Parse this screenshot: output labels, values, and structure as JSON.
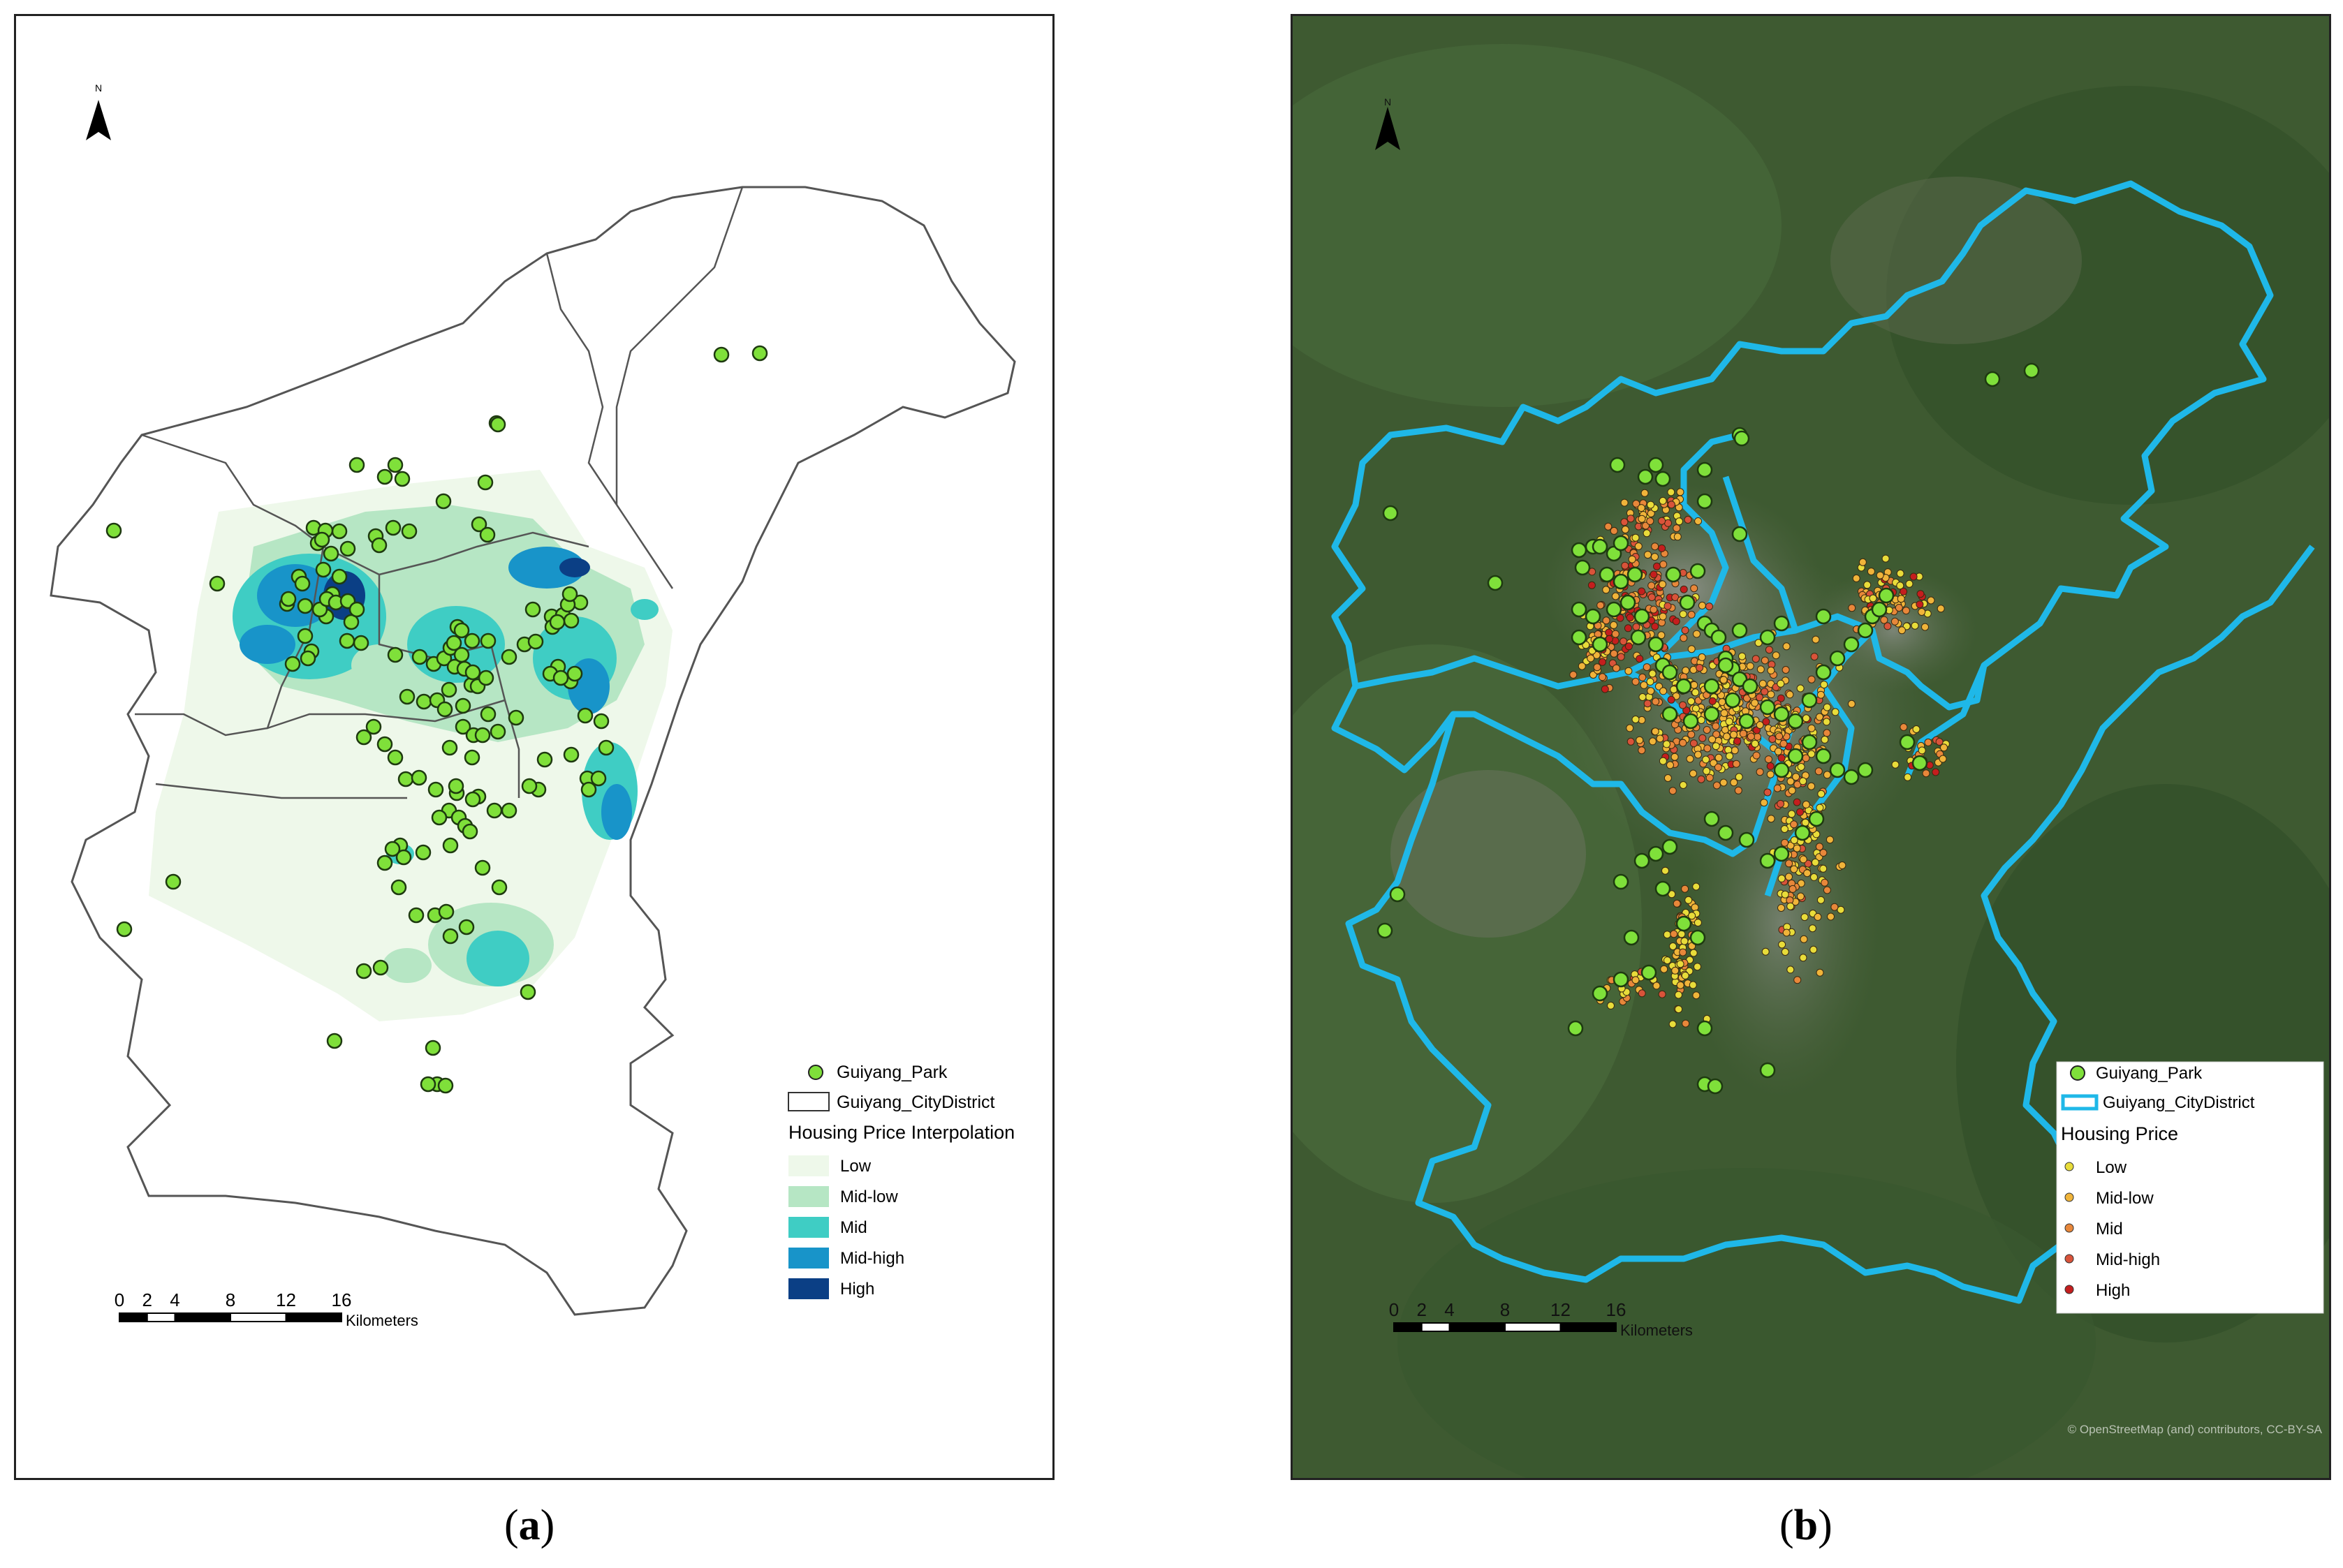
{
  "panel_a": {
    "caption_open": "(",
    "caption_letter": "a",
    "caption_close": ")",
    "north_label": "N",
    "legend": {
      "park": "Guiyang_Park",
      "district": "Guiyang_CityDistrict",
      "title": "Housing Price Interpolation",
      "classes": [
        {
          "label": "Low",
          "color": "#eef8ea"
        },
        {
          "label": "Mid-low",
          "color": "#b6e6c4"
        },
        {
          "label": "Mid",
          "color": "#3fcdc4"
        },
        {
          "label": "Mid-high",
          "color": "#1894c9"
        },
        {
          "label": "High",
          "color": "#0b3f85"
        }
      ]
    },
    "scale": {
      "ticks": [
        "0",
        "2",
        "4",
        "8",
        "12",
        "16"
      ],
      "unit": "Kilometers"
    }
  },
  "panel_b": {
    "caption_open": "(",
    "caption_letter": "b",
    "caption_close": ")",
    "north_label": "N",
    "legend": {
      "park": "Guiyang_Park",
      "district": "Guiyang_CityDistrict",
      "title": "Housing Price",
      "classes": [
        {
          "label": "Low",
          "color": "#e8dc3a"
        },
        {
          "label": "Mid-low",
          "color": "#f0b43a"
        },
        {
          "label": "Mid",
          "color": "#e8873a"
        },
        {
          "label": "Mid-high",
          "color": "#d9533a"
        },
        {
          "label": "High",
          "color": "#c41e1e"
        }
      ]
    },
    "scale": {
      "ticks": [
        "0",
        "2",
        "4",
        "8",
        "12",
        "16"
      ],
      "unit": "Kilometers"
    },
    "attribution": "© OpenStreetMap (and) contributors, CC-BY-SA"
  },
  "colors": {
    "park": "#7fe03a",
    "district_b": "#1fb8e8",
    "outline_a": "#555555"
  }
}
